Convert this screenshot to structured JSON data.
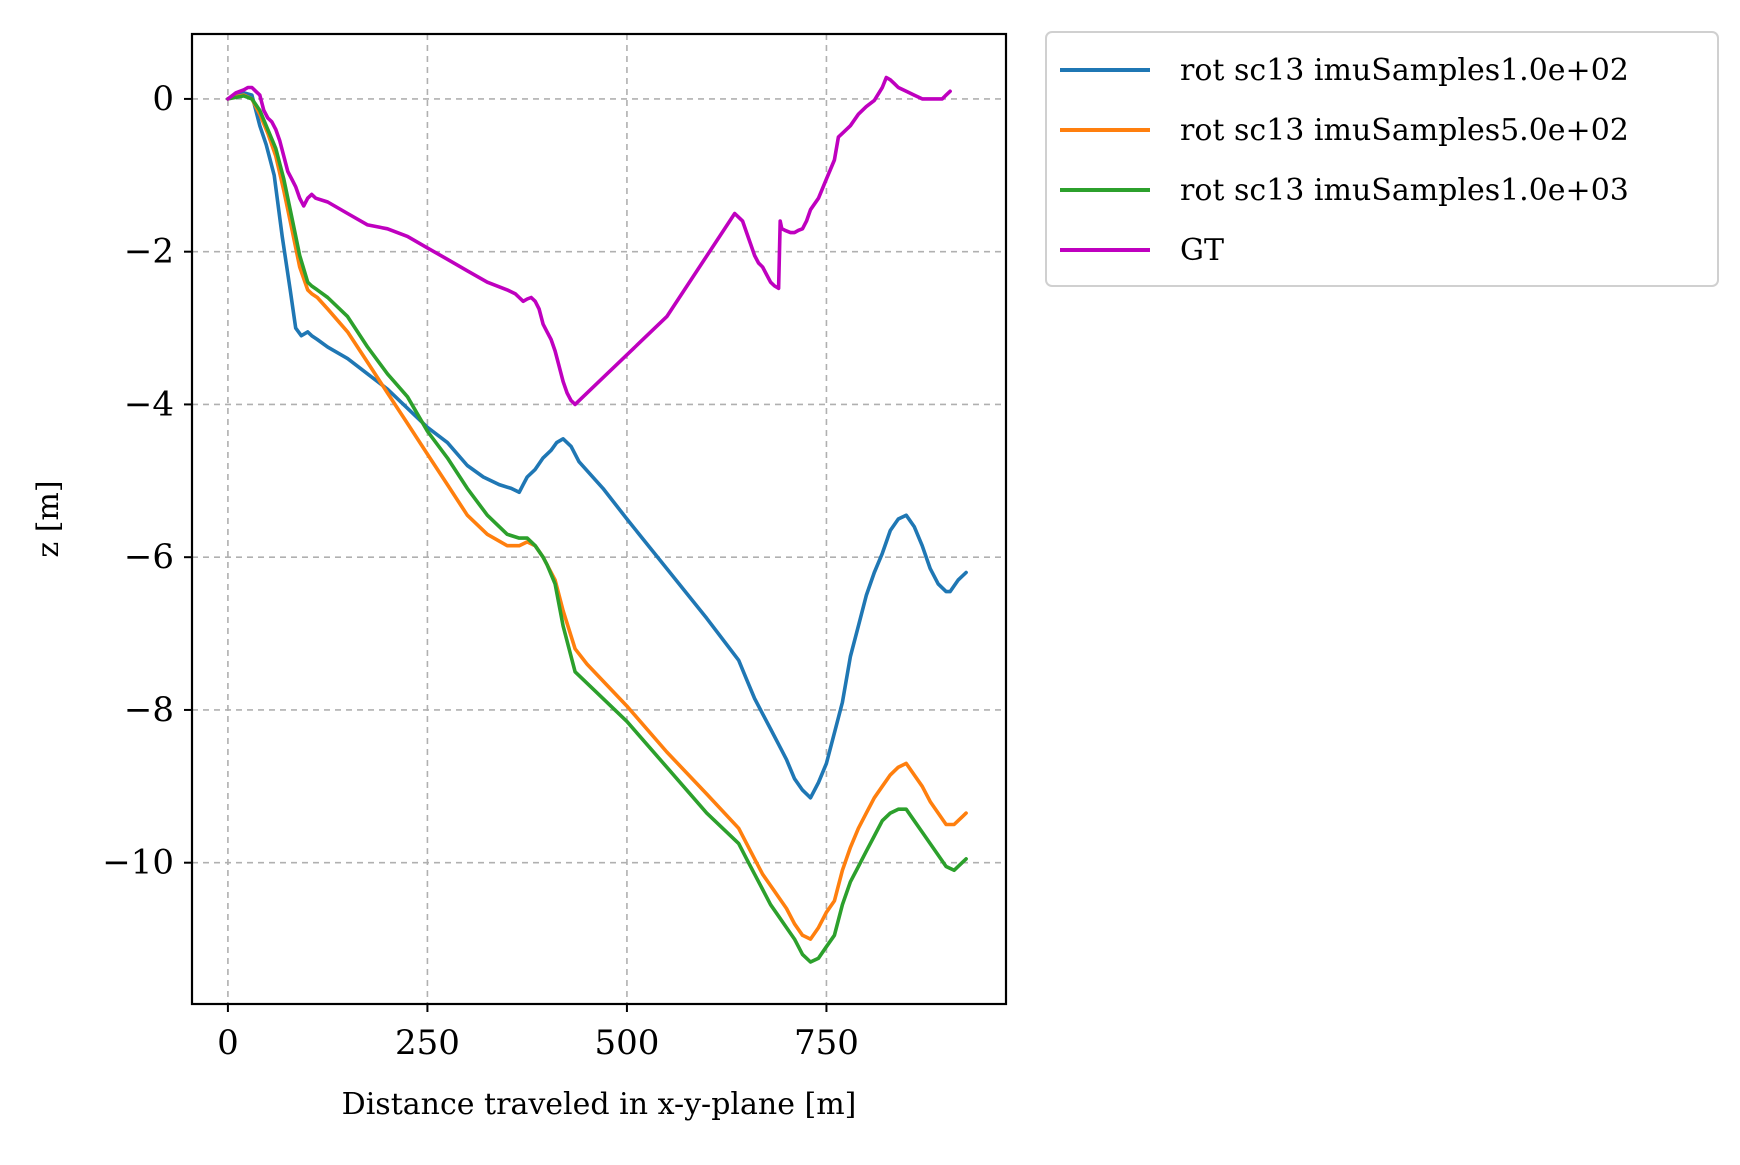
{
  "chart_data": {
    "type": "line",
    "title": "",
    "xlabel": "Distance traveled in x-y-plane [m]",
    "ylabel": "z [m]",
    "xlim": [
      -45,
      975
    ],
    "ylim": [
      -11.85,
      0.85
    ],
    "xticks": [
      0,
      250,
      500,
      750
    ],
    "xtick_labels": [
      "0",
      "250",
      "500",
      "750"
    ],
    "yticks": [
      0,
      -2,
      -4,
      -6,
      -8,
      -10
    ],
    "ytick_labels": [
      "0",
      "−2",
      "−4",
      "−6",
      "−8",
      "−10"
    ],
    "grid": true,
    "legend_position": "outside-top-right",
    "series": [
      {
        "name": "rot sc13 imuSamples1.0e+02",
        "color": "#1f77b4",
        "x": [
          0,
          10,
          20,
          30,
          40,
          48,
          58,
          68,
          78,
          85,
          92,
          100,
          105,
          112,
          125,
          150,
          175,
          200,
          225,
          250,
          275,
          300,
          320,
          340,
          355,
          365,
          370,
          375,
          385,
          395,
          405,
          412,
          420,
          430,
          440,
          470,
          500,
          550,
          600,
          640,
          650,
          660,
          670,
          680,
          690,
          700,
          710,
          720,
          730,
          740,
          750,
          760,
          770,
          780,
          790,
          800,
          810,
          820,
          830,
          840,
          850,
          860,
          870,
          880,
          890,
          900,
          905,
          915,
          925
        ],
        "y": [
          0.0,
          0.05,
          0.08,
          0.05,
          -0.35,
          -0.6,
          -1.0,
          -1.8,
          -2.5,
          -3.0,
          -3.1,
          -3.05,
          -3.1,
          -3.15,
          -3.25,
          -3.4,
          -3.6,
          -3.8,
          -4.05,
          -4.3,
          -4.5,
          -4.8,
          -4.95,
          -5.05,
          -5.1,
          -5.15,
          -5.05,
          -4.95,
          -4.85,
          -4.7,
          -4.6,
          -4.5,
          -4.45,
          -4.55,
          -4.75,
          -5.1,
          -5.5,
          -6.15,
          -6.8,
          -7.35,
          -7.6,
          -7.85,
          -8.05,
          -8.25,
          -8.45,
          -8.65,
          -8.9,
          -9.05,
          -9.15,
          -8.95,
          -8.7,
          -8.3,
          -7.9,
          -7.3,
          -6.9,
          -6.5,
          -6.2,
          -5.95,
          -5.65,
          -5.5,
          -5.45,
          -5.6,
          -5.85,
          -6.15,
          -6.35,
          -6.45,
          -6.45,
          -6.3,
          -6.2
        ]
      },
      {
        "name": "rot sc13 imuSamples5.0e+02",
        "color": "#ff7f0e",
        "x": [
          0,
          10,
          20,
          30,
          40,
          50,
          60,
          70,
          80,
          90,
          100,
          105,
          112,
          125,
          150,
          175,
          200,
          225,
          250,
          275,
          300,
          325,
          350,
          365,
          375,
          385,
          395,
          400,
          410,
          420,
          435,
          450,
          500,
          550,
          600,
          640,
          650,
          660,
          670,
          680,
          690,
          700,
          710,
          720,
          730,
          740,
          750,
          760,
          770,
          780,
          790,
          800,
          810,
          820,
          830,
          840,
          850,
          860,
          870,
          880,
          890,
          900,
          910,
          920,
          925
        ],
        "y": [
          0.0,
          0.03,
          0.05,
          0.0,
          -0.2,
          -0.45,
          -0.75,
          -1.2,
          -1.7,
          -2.2,
          -2.5,
          -2.55,
          -2.6,
          -2.75,
          -3.05,
          -3.45,
          -3.85,
          -4.25,
          -4.65,
          -5.05,
          -5.45,
          -5.7,
          -5.85,
          -5.85,
          -5.8,
          -5.85,
          -6.0,
          -6.1,
          -6.3,
          -6.7,
          -7.2,
          -7.4,
          -7.95,
          -8.55,
          -9.1,
          -9.55,
          -9.75,
          -9.95,
          -10.15,
          -10.3,
          -10.45,
          -10.6,
          -10.8,
          -10.95,
          -11.0,
          -10.85,
          -10.65,
          -10.5,
          -10.1,
          -9.8,
          -9.55,
          -9.35,
          -9.15,
          -9.0,
          -8.85,
          -8.75,
          -8.7,
          -8.85,
          -9.0,
          -9.2,
          -9.35,
          -9.5,
          -9.5,
          -9.4,
          -9.35
        ]
      },
      {
        "name": "rot sc13 imuSamples1.0e+03",
        "color": "#2ca02c",
        "x": [
          0,
          10,
          20,
          30,
          40,
          50,
          60,
          70,
          80,
          90,
          100,
          105,
          112,
          125,
          150,
          175,
          200,
          225,
          250,
          275,
          300,
          325,
          350,
          365,
          375,
          385,
          395,
          400,
          410,
          420,
          435,
          450,
          500,
          550,
          600,
          640,
          650,
          660,
          670,
          680,
          690,
          700,
          710,
          720,
          730,
          740,
          750,
          760,
          770,
          780,
          790,
          800,
          810,
          820,
          830,
          840,
          850,
          860,
          870,
          880,
          890,
          900,
          910,
          920,
          925
        ],
        "y": [
          0.0,
          0.02,
          0.04,
          0.0,
          -0.15,
          -0.4,
          -0.65,
          -1.05,
          -1.55,
          -2.05,
          -2.4,
          -2.45,
          -2.5,
          -2.6,
          -2.85,
          -3.25,
          -3.6,
          -3.9,
          -4.35,
          -4.7,
          -5.1,
          -5.45,
          -5.7,
          -5.75,
          -5.75,
          -5.85,
          -6.0,
          -6.1,
          -6.35,
          -6.9,
          -7.5,
          -7.65,
          -8.15,
          -8.75,
          -9.35,
          -9.75,
          -9.95,
          -10.15,
          -10.35,
          -10.55,
          -10.7,
          -10.85,
          -11.0,
          -11.2,
          -11.3,
          -11.25,
          -11.1,
          -10.95,
          -10.55,
          -10.25,
          -10.05,
          -9.85,
          -9.65,
          -9.45,
          -9.35,
          -9.3,
          -9.3,
          -9.45,
          -9.6,
          -9.75,
          -9.9,
          -10.05,
          -10.1,
          -10.0,
          -9.95
        ]
      },
      {
        "name": "GT",
        "color": "#bf00bf",
        "x": [
          0,
          10,
          20,
          25,
          30,
          35,
          40,
          45,
          50,
          55,
          60,
          65,
          70,
          75,
          80,
          85,
          90,
          95,
          100,
          105,
          110,
          125,
          150,
          175,
          200,
          225,
          250,
          275,
          300,
          325,
          350,
          360,
          365,
          370,
          375,
          380,
          385,
          390,
          395,
          400,
          405,
          410,
          415,
          420,
          425,
          430,
          435,
          550,
          635,
          640,
          645,
          650,
          655,
          660,
          665,
          670,
          675,
          680,
          685,
          690,
          692,
          694,
          698,
          705,
          710,
          715,
          720,
          725,
          730,
          740,
          750,
          760,
          765,
          770,
          780,
          790,
          800,
          810,
          820,
          825,
          830,
          835,
          840,
          850,
          860,
          870,
          880,
          890,
          895,
          900,
          905
        ],
        "y": [
          0.0,
          0.08,
          0.12,
          0.15,
          0.15,
          0.1,
          0.05,
          -0.15,
          -0.25,
          -0.3,
          -0.4,
          -0.55,
          -0.75,
          -0.95,
          -1.05,
          -1.15,
          -1.3,
          -1.4,
          -1.3,
          -1.25,
          -1.3,
          -1.35,
          -1.5,
          -1.65,
          -1.7,
          -1.8,
          -1.95,
          -2.1,
          -2.25,
          -2.4,
          -2.5,
          -2.55,
          -2.6,
          -2.65,
          -2.62,
          -2.6,
          -2.65,
          -2.75,
          -2.95,
          -3.05,
          -3.15,
          -3.3,
          -3.5,
          -3.7,
          -3.85,
          -3.95,
          -4.0,
          -2.85,
          -1.5,
          -1.55,
          -1.6,
          -1.75,
          -1.9,
          -2.05,
          -2.15,
          -2.2,
          -2.3,
          -2.4,
          -2.45,
          -2.48,
          -1.6,
          -1.7,
          -1.72,
          -1.75,
          -1.75,
          -1.72,
          -1.7,
          -1.6,
          -1.45,
          -1.3,
          -1.05,
          -0.8,
          -0.5,
          -0.45,
          -0.35,
          -0.2,
          -0.1,
          -0.02,
          0.15,
          0.28,
          0.25,
          0.2,
          0.15,
          0.1,
          0.05,
          0.0,
          0.0,
          0.0,
          0.0,
          0.05,
          0.1
        ]
      }
    ]
  }
}
